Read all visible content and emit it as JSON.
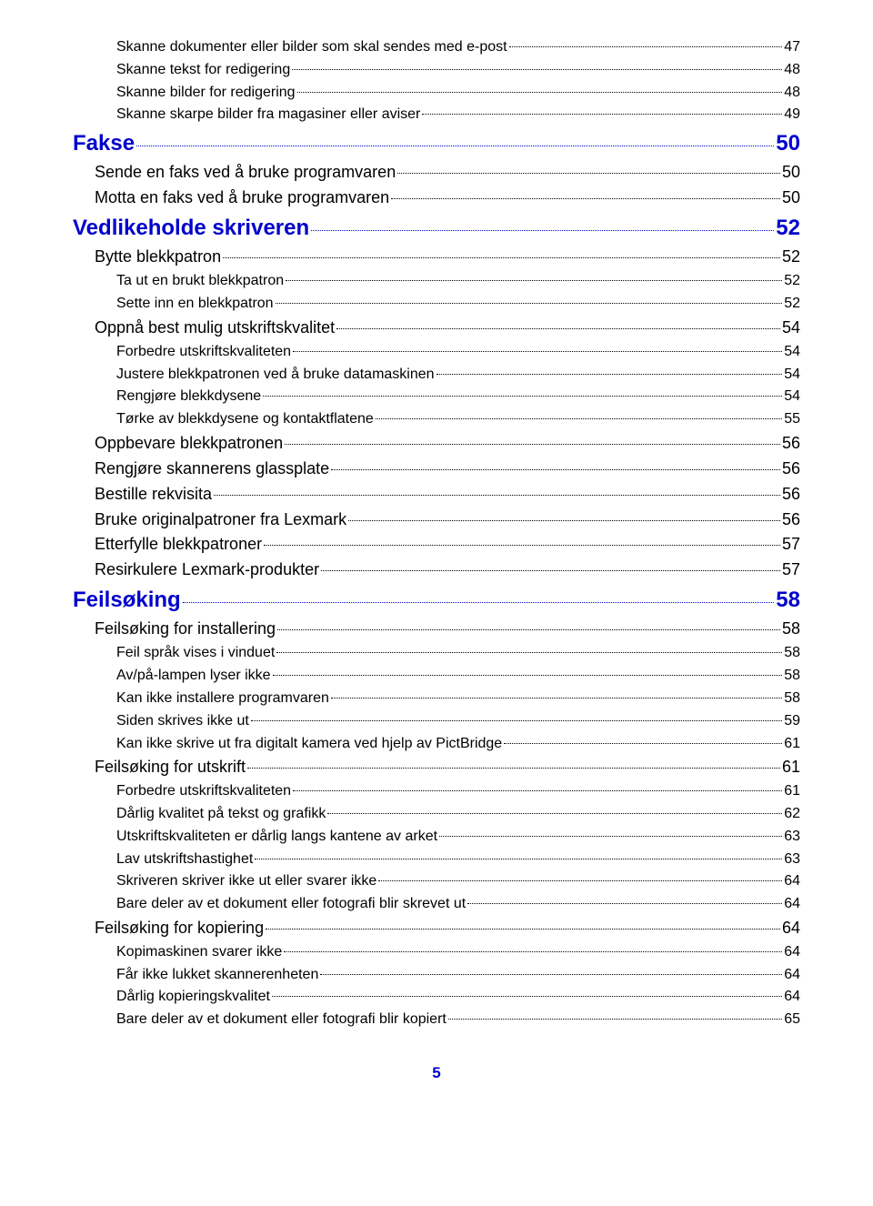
{
  "toc": [
    {
      "label": "Skanne dokumenter eller bilder som skal sendes med e-post",
      "page": "47",
      "level": 2,
      "color": "black"
    },
    {
      "label": "Skanne tekst for redigering",
      "page": "48",
      "level": 2,
      "color": "black"
    },
    {
      "label": "Skanne bilder for redigering",
      "page": "48",
      "level": 2,
      "color": "black"
    },
    {
      "label": "Skanne skarpe bilder fra magasiner eller aviser",
      "page": "49",
      "level": 2,
      "color": "black"
    },
    {
      "label": "Fakse",
      "page": "50",
      "level": 0,
      "color": "blue"
    },
    {
      "label": "Sende en faks ved å bruke programvaren",
      "page": "50",
      "level": 1,
      "color": "black"
    },
    {
      "label": "Motta en faks ved å bruke programvaren",
      "page": "50",
      "level": 1,
      "color": "black"
    },
    {
      "label": "Vedlikeholde skriveren",
      "page": "52",
      "level": 0,
      "color": "blue"
    },
    {
      "label": "Bytte blekkpatron",
      "page": "52",
      "level": 1,
      "color": "black"
    },
    {
      "label": "Ta ut en brukt blekkpatron",
      "page": "52",
      "level": 2,
      "color": "black"
    },
    {
      "label": "Sette inn en blekkpatron",
      "page": "52",
      "level": 2,
      "color": "black"
    },
    {
      "label": "Oppnå best mulig utskriftskvalitet",
      "page": "54",
      "level": 1,
      "color": "black"
    },
    {
      "label": "Forbedre utskriftskvaliteten",
      "page": "54",
      "level": 2,
      "color": "black"
    },
    {
      "label": "Justere blekkpatronen ved å bruke datamaskinen",
      "page": "54",
      "level": 2,
      "color": "black"
    },
    {
      "label": "Rengjøre blekkdysene",
      "page": "54",
      "level": 2,
      "color": "black"
    },
    {
      "label": "Tørke av blekkdysene og kontaktflatene",
      "page": "55",
      "level": 2,
      "color": "black"
    },
    {
      "label": "Oppbevare blekkpatronen",
      "page": "56",
      "level": 1,
      "color": "black"
    },
    {
      "label": "Rengjøre skannerens glassplate",
      "page": "56",
      "level": 1,
      "color": "black"
    },
    {
      "label": "Bestille rekvisita",
      "page": "56",
      "level": 1,
      "color": "black"
    },
    {
      "label": "Bruke originalpatroner fra Lexmark",
      "page": "56",
      "level": 1,
      "color": "black"
    },
    {
      "label": "Etterfylle blekkpatroner",
      "page": "57",
      "level": 1,
      "color": "black"
    },
    {
      "label": "Resirkulere Lexmark-produkter",
      "page": "57",
      "level": 1,
      "color": "black"
    },
    {
      "label": "Feilsøking",
      "page": "58",
      "level": 0,
      "color": "blue"
    },
    {
      "label": "Feilsøking for installering",
      "page": "58",
      "level": 1,
      "color": "black"
    },
    {
      "label": "Feil språk vises i vinduet",
      "page": "58",
      "level": 2,
      "color": "black"
    },
    {
      "label": "Av/på-lampen lyser ikke",
      "page": "58",
      "level": 2,
      "color": "black"
    },
    {
      "label": "Kan ikke installere programvaren",
      "page": "58",
      "level": 2,
      "color": "black"
    },
    {
      "label": "Siden skrives ikke ut",
      "page": "59",
      "level": 2,
      "color": "black"
    },
    {
      "label": "Kan ikke skrive ut fra digitalt kamera ved hjelp av PictBridge",
      "page": "61",
      "level": 2,
      "color": "black"
    },
    {
      "label": "Feilsøking for utskrift",
      "page": "61",
      "level": 1,
      "color": "black"
    },
    {
      "label": "Forbedre utskriftskvaliteten",
      "page": "61",
      "level": 2,
      "color": "black"
    },
    {
      "label": "Dårlig kvalitet på tekst og grafikk",
      "page": "62",
      "level": 2,
      "color": "black"
    },
    {
      "label": "Utskriftskvaliteten er dårlig langs kantene av arket",
      "page": "63",
      "level": 2,
      "color": "black"
    },
    {
      "label": "Lav utskriftshastighet",
      "page": "63",
      "level": 2,
      "color": "black"
    },
    {
      "label": "Skriveren skriver ikke ut eller svarer ikke",
      "page": "64",
      "level": 2,
      "color": "black"
    },
    {
      "label": "Bare deler av et dokument eller fotografi blir skrevet ut",
      "page": "64",
      "level": 2,
      "color": "black"
    },
    {
      "label": "Feilsøking for kopiering",
      "page": "64",
      "level": 1,
      "color": "black"
    },
    {
      "label": "Kopimaskinen svarer ikke",
      "page": "64",
      "level": 2,
      "color": "black"
    },
    {
      "label": "Får ikke lukket skannerenheten",
      "page": "64",
      "level": 2,
      "color": "black"
    },
    {
      "label": "Dårlig kopieringskvalitet",
      "page": "64",
      "level": 2,
      "color": "black"
    },
    {
      "label": "Bare deler av et dokument eller fotografi blir kopiert",
      "page": "65",
      "level": 2,
      "color": "black"
    }
  ],
  "pageNumber": "5"
}
